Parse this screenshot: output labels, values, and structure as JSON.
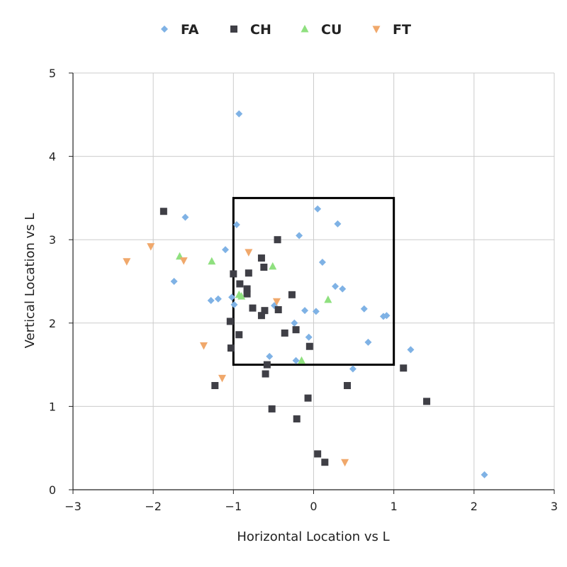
{
  "chart_data": {
    "type": "scatter",
    "xlabel": "Horizontal Location vs L",
    "ylabel": "Vertical Location vs L",
    "xlim": [
      -3,
      3
    ],
    "ylim": [
      0,
      5
    ],
    "x_ticks": [
      -3,
      -2,
      -1,
      0,
      1,
      2,
      3
    ],
    "x_tick_labels": [
      "−3",
      "−2",
      "−1",
      "0",
      "1",
      "2",
      "3"
    ],
    "y_ticks": [
      0,
      1,
      2,
      3,
      4,
      5
    ],
    "y_tick_labels": [
      "0",
      "1",
      "2",
      "3",
      "4",
      "5"
    ],
    "grid": true,
    "legend_position": "top-center",
    "strike_zone": {
      "x": [
        -1,
        1
      ],
      "y": [
        1.5,
        3.5
      ]
    },
    "series": [
      {
        "name": "FA",
        "marker": "diamond",
        "color": "#7FB2E5",
        "points": [
          [
            -0.93,
            4.51
          ],
          [
            0.05,
            3.37
          ],
          [
            -1.6,
            3.27
          ],
          [
            -0.96,
            3.18
          ],
          [
            0.3,
            3.19
          ],
          [
            -0.18,
            3.05
          ],
          [
            -1.1,
            2.88
          ],
          [
            0.11,
            2.73
          ],
          [
            -1.74,
            2.5
          ],
          [
            0.27,
            2.44
          ],
          [
            0.36,
            2.41
          ],
          [
            -1.02,
            2.31
          ],
          [
            -1.19,
            2.29
          ],
          [
            -1.28,
            2.27
          ],
          [
            -0.99,
            2.22
          ],
          [
            -0.49,
            2.21
          ],
          [
            0.63,
            2.17
          ],
          [
            -0.11,
            2.15
          ],
          [
            0.03,
            2.14
          ],
          [
            0.87,
            2.08
          ],
          [
            0.91,
            2.09
          ],
          [
            -0.24,
            2.0
          ],
          [
            -0.06,
            1.83
          ],
          [
            0.68,
            1.77
          ],
          [
            1.21,
            1.68
          ],
          [
            -0.55,
            1.6
          ],
          [
            -0.22,
            1.55
          ],
          [
            0.49,
            1.45
          ],
          [
            2.13,
            0.18
          ]
        ]
      },
      {
        "name": "CH",
        "marker": "square",
        "color": "#3F3F46",
        "points": [
          [
            -1.87,
            3.34
          ],
          [
            -0.45,
            3.0
          ],
          [
            -0.65,
            2.78
          ],
          [
            -0.62,
            2.67
          ],
          [
            -1.0,
            2.59
          ],
          [
            -0.81,
            2.6
          ],
          [
            -0.92,
            2.47
          ],
          [
            -0.83,
            2.41
          ],
          [
            -0.83,
            2.35
          ],
          [
            -0.27,
            2.34
          ],
          [
            -0.76,
            2.18
          ],
          [
            -0.61,
            2.15
          ],
          [
            -0.44,
            2.16
          ],
          [
            -0.65,
            2.09
          ],
          [
            -1.04,
            2.02
          ],
          [
            -0.22,
            1.92
          ],
          [
            -0.36,
            1.88
          ],
          [
            -0.93,
            1.86
          ],
          [
            -1.03,
            1.7
          ],
          [
            -0.05,
            1.72
          ],
          [
            -0.58,
            1.5
          ],
          [
            1.12,
            1.46
          ],
          [
            -0.6,
            1.39
          ],
          [
            -1.23,
            1.25
          ],
          [
            0.42,
            1.25
          ],
          [
            -0.07,
            1.1
          ],
          [
            1.41,
            1.06
          ],
          [
            -0.52,
            0.97
          ],
          [
            -0.21,
            0.85
          ],
          [
            0.05,
            0.43
          ],
          [
            0.14,
            0.33
          ]
        ]
      },
      {
        "name": "CU",
        "marker": "triangle-up",
        "color": "#8FE07F",
        "points": [
          [
            -1.67,
            2.8
          ],
          [
            -1.27,
            2.74
          ],
          [
            -0.51,
            2.68
          ],
          [
            -0.93,
            2.34
          ],
          [
            -0.9,
            2.32
          ],
          [
            0.18,
            2.28
          ],
          [
            -0.15,
            1.55
          ]
        ]
      },
      {
        "name": "FT",
        "marker": "triangle-down",
        "color": "#F0A86B",
        "points": [
          [
            -2.03,
            2.92
          ],
          [
            -0.81,
            2.85
          ],
          [
            -2.33,
            2.74
          ],
          [
            -1.62,
            2.75
          ],
          [
            -0.46,
            2.26
          ],
          [
            -1.37,
            1.73
          ],
          [
            -1.14,
            1.34
          ],
          [
            0.39,
            0.33
          ]
        ]
      }
    ]
  }
}
